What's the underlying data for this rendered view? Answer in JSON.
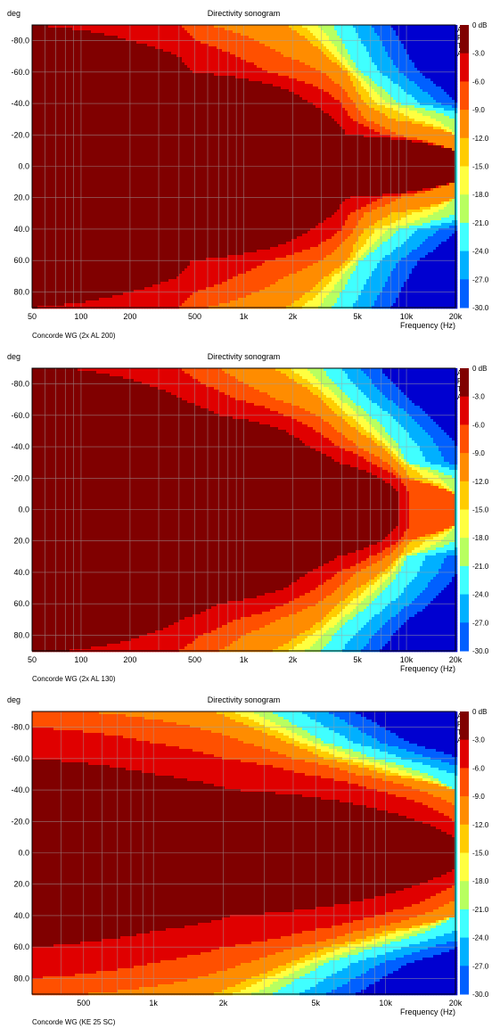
{
  "chart_data": [
    {
      "type": "heatmap",
      "title": "Directivity sonogram",
      "ylabel": "deg",
      "xlabel": "Frequency (Hz)",
      "caption": "Concorde WG (2x AL 200)",
      "watermark": "ARTA",
      "x_scale": "log",
      "x_range": [
        50,
        20000
      ],
      "x_ticks": [
        {
          "value": 50,
          "label": "50"
        },
        {
          "value": 100,
          "label": "100"
        },
        {
          "value": 200,
          "label": "200"
        },
        {
          "value": 500,
          "label": "500"
        },
        {
          "value": 1000,
          "label": "1k"
        },
        {
          "value": 2000,
          "label": "2k"
        },
        {
          "value": 5000,
          "label": "5k"
        },
        {
          "value": 10000,
          "label": "10k"
        },
        {
          "value": 20000,
          "label": "20k"
        }
      ],
      "y_range": [
        -90,
        90
      ],
      "y_ticks": [
        {
          "value": -80,
          "label": "-80.0"
        },
        {
          "value": -60,
          "label": "-60.0"
        },
        {
          "value": -40,
          "label": "-40.0"
        },
        {
          "value": -20,
          "label": "-20.0"
        },
        {
          "value": 0,
          "label": "0.0"
        },
        {
          "value": 20,
          "label": "20.0"
        },
        {
          "value": 40,
          "label": "40.0"
        },
        {
          "value": 60,
          "label": "60.0"
        },
        {
          "value": 80,
          "label": "80.0"
        }
      ],
      "grid": true,
      "z_unit": "dB",
      "z_range": [
        -30,
        0
      ],
      "colorbar_labels": [
        "0 dB",
        "-3.0",
        "-6.0",
        "-9.0",
        "-12.0",
        "-15.0",
        "-18.0",
        "-21.0",
        "-24.0",
        "-27.0",
        "-30.0"
      ],
      "contours_hz_by_angle": {
        "angles_deg": [
          0,
          10,
          20,
          30,
          40,
          50,
          60,
          70,
          80,
          90
        ],
        "minus_3dB": [
          20000,
          20000,
          4300,
          3600,
          2600,
          1700,
          480,
          400,
          200,
          50
        ],
        "minus_6dB": [
          20000,
          20000,
          7000,
          4500,
          4000,
          2900,
          1400,
          900,
          500,
          400
        ],
        "minus_9dB": [
          20000,
          20000,
          9000,
          5500,
          4800,
          4000,
          3000,
          1800,
          1200,
          600
        ],
        "minus_12dB": [
          20000,
          20000,
          20000,
          8000,
          5500,
          4800,
          4300,
          3200,
          2500,
          1800
        ],
        "minus_18dB": [
          20000,
          20000,
          20000,
          20000,
          9000,
          7000,
          5200,
          4500,
          4000,
          3500
        ]
      }
    },
    {
      "type": "heatmap",
      "title": "Directivity sonogram",
      "ylabel": "deg",
      "xlabel": "Frequency (Hz)",
      "caption": "Concorde WG (2x AL 130)",
      "watermark": "ARTA",
      "x_scale": "log",
      "x_range": [
        50,
        20000
      ],
      "x_ticks": [
        {
          "value": 50,
          "label": "50"
        },
        {
          "value": 100,
          "label": "100"
        },
        {
          "value": 200,
          "label": "200"
        },
        {
          "value": 500,
          "label": "500"
        },
        {
          "value": 1000,
          "label": "1k"
        },
        {
          "value": 2000,
          "label": "2k"
        },
        {
          "value": 5000,
          "label": "5k"
        },
        {
          "value": 10000,
          "label": "10k"
        },
        {
          "value": 20000,
          "label": "20k"
        }
      ],
      "y_range": [
        -90,
        90
      ],
      "y_ticks": [
        {
          "value": -80,
          "label": "-80.0"
        },
        {
          "value": -60,
          "label": "-60.0"
        },
        {
          "value": -40,
          "label": "-40.0"
        },
        {
          "value": -20,
          "label": "-20.0"
        },
        {
          "value": 0,
          "label": "0.0"
        },
        {
          "value": 20,
          "label": "20.0"
        },
        {
          "value": 40,
          "label": "40.0"
        },
        {
          "value": 60,
          "label": "60.0"
        },
        {
          "value": 80,
          "label": "80.0"
        }
      ],
      "grid": true,
      "z_unit": "dB",
      "z_range": [
        -30,
        0
      ],
      "colorbar_labels": [
        "0 dB",
        "-3.0",
        "-6.0",
        "-9.0",
        "-12.0",
        "-15.0",
        "-18.0",
        "-21.0",
        "-24.0",
        "-27.0",
        "-30.0"
      ],
      "contours_hz_by_angle": {
        "angles_deg": [
          0,
          10,
          20,
          30,
          40,
          50,
          60,
          70,
          80,
          90
        ],
        "minus_3dB": [
          9000,
          9000,
          7000,
          3800,
          2500,
          1800,
          700,
          420,
          250,
          80
        ],
        "minus_6dB": [
          10500,
          10500,
          9000,
          6000,
          3800,
          2800,
          1800,
          900,
          550,
          400
        ],
        "minus_9dB": [
          20000,
          20000,
          9500,
          7500,
          5000,
          3800,
          2800,
          1600,
          1000,
          700
        ],
        "minus_12dB": [
          20000,
          20000,
          10500,
          9000,
          7000,
          5000,
          3800,
          3000,
          2200,
          1500
        ],
        "minus_18dB": [
          20000,
          20000,
          20000,
          10000,
          9000,
          7500,
          6000,
          4500,
          3600,
          3000
        ]
      }
    },
    {
      "type": "heatmap",
      "title": "Directivity sonogram",
      "ylabel": "deg",
      "xlabel": "Frequency (Hz)",
      "caption": "Concorde WG (KE 25 SC)",
      "watermark": "ARTA",
      "x_scale": "log",
      "x_range": [
        300,
        20000
      ],
      "x_ticks": [
        {
          "value": 500,
          "label": "500"
        },
        {
          "value": 1000,
          "label": "1k"
        },
        {
          "value": 2000,
          "label": "2k"
        },
        {
          "value": 5000,
          "label": "5k"
        },
        {
          "value": 10000,
          "label": "10k"
        },
        {
          "value": 20000,
          "label": "20k"
        }
      ],
      "y_range": [
        -90,
        90
      ],
      "y_ticks": [
        {
          "value": -80,
          "label": "-80.0"
        },
        {
          "value": -60,
          "label": "-60.0"
        },
        {
          "value": -40,
          "label": "-40.0"
        },
        {
          "value": -20,
          "label": "-20.0"
        },
        {
          "value": 0,
          "label": "0.0"
        },
        {
          "value": 20,
          "label": "20.0"
        },
        {
          "value": 40,
          "label": "40.0"
        },
        {
          "value": 60,
          "label": "60.0"
        },
        {
          "value": 80,
          "label": "80.0"
        }
      ],
      "grid": true,
      "z_unit": "dB",
      "z_range": [
        -30,
        0
      ],
      "colorbar_labels": [
        "0 dB",
        "-3.0",
        "-6.0",
        "-9.0",
        "-12.0",
        "-15.0",
        "-18.0",
        "-21.0",
        "-24.0",
        "-27.0",
        "-30.0"
      ],
      "contours_hz_by_angle": {
        "angles_deg": [
          0,
          10,
          20,
          30,
          40,
          50,
          60,
          70,
          80,
          90
        ],
        "minus_3dB": [
          20000,
          20000,
          14000,
          8000,
          2200,
          1000,
          300,
          300,
          300,
          300
        ],
        "minus_6dB": [
          20000,
          20000,
          20000,
          15000,
          9000,
          4500,
          2000,
          1000,
          300,
          300
        ],
        "minus_9dB": [
          20000,
          20000,
          20000,
          20000,
          14000,
          7500,
          4000,
          2500,
          1500,
          500
        ],
        "minus_12dB": [
          20000,
          20000,
          20000,
          20000,
          20000,
          10000,
          5500,
          3800,
          2600,
          1800
        ],
        "minus_18dB": [
          20000,
          20000,
          20000,
          20000,
          20000,
          15000,
          9000,
          5500,
          4200,
          3200
        ]
      }
    }
  ],
  "colors": {
    "scale": [
      "#800000",
      "#e00000",
      "#ff5000",
      "#ff8c00",
      "#ffcc00",
      "#ffff40",
      "#b8ff60",
      "#40ffff",
      "#00b0ff",
      "#0060ff",
      "#0000d0"
    ],
    "grid": "#a0a0a0",
    "frame": "#000000"
  }
}
